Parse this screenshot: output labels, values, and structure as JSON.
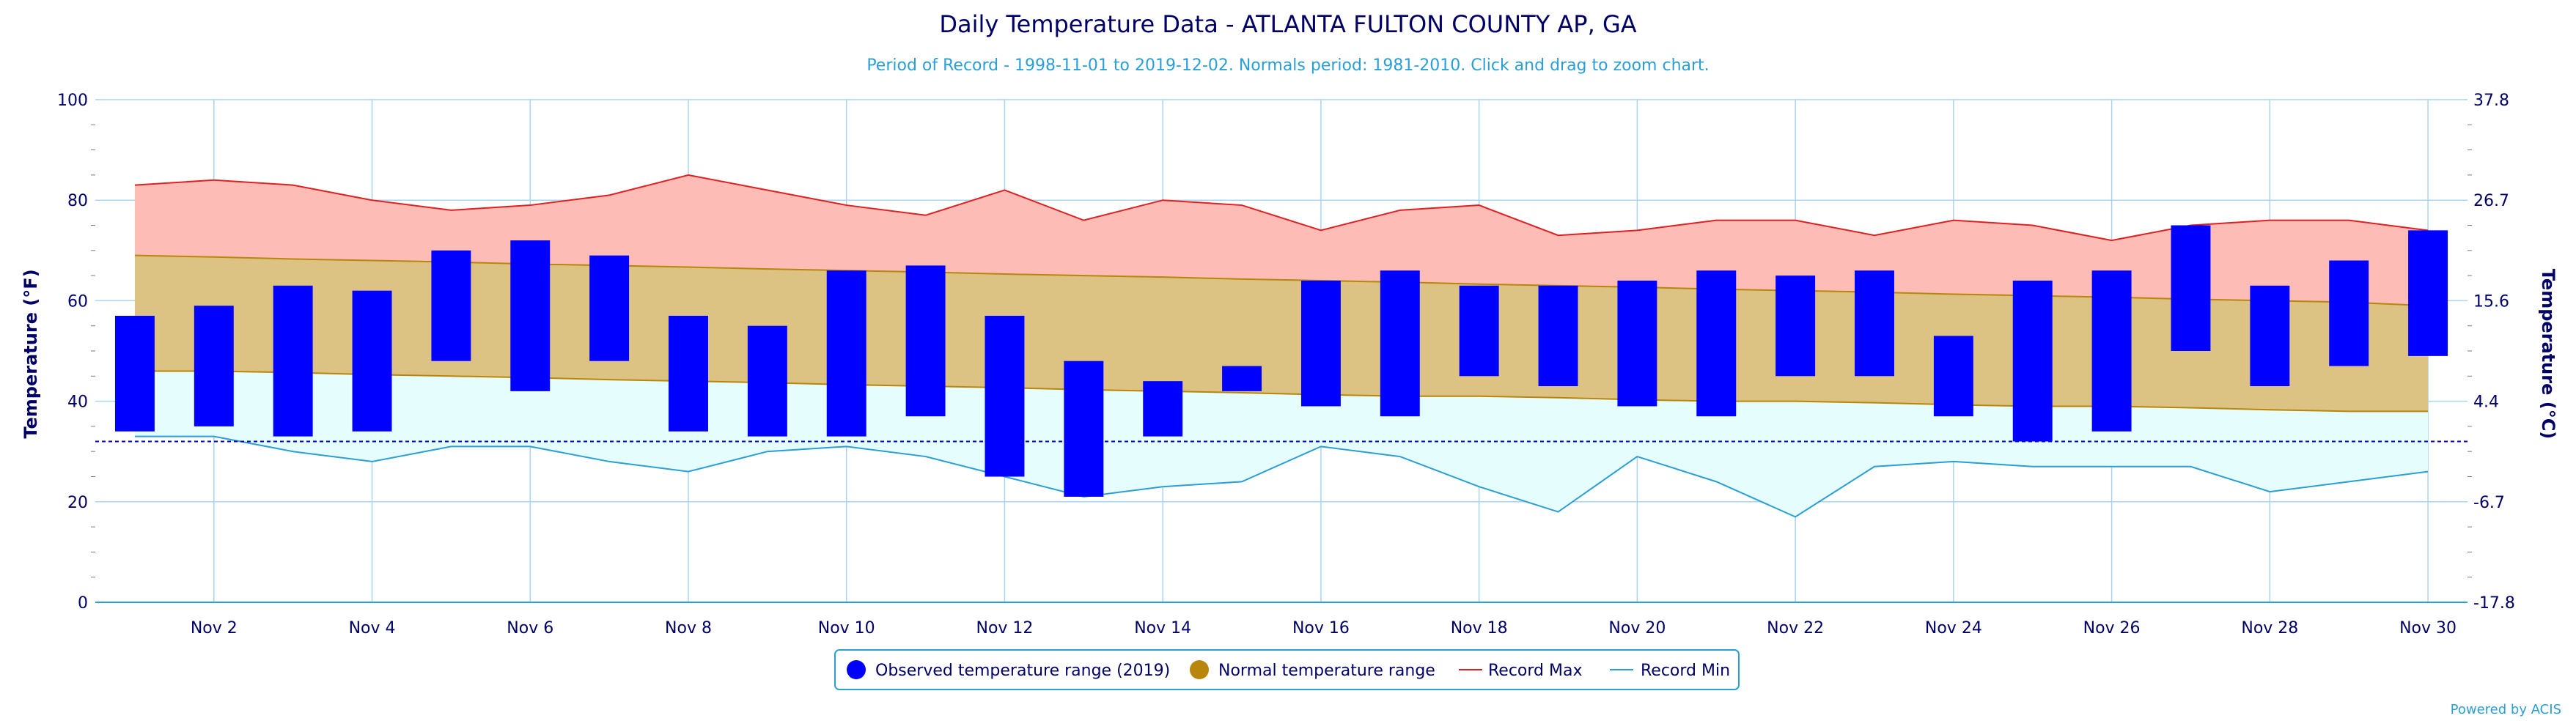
{
  "chart_data": {
    "type": "bar",
    "title": "Daily Temperature Data - ATLANTA FULTON COUNTY AP, GA",
    "subtitle": "Period of Record - 1998-11-01 to 2019-12-02. Normals period: 1981-2010. Click and drag to zoom chart.",
    "ylabel": "Temperature (°F)",
    "ylabel_right": "Temperature (°C)",
    "ylim": [
      0,
      100
    ],
    "y_ticks": [
      "0",
      "20",
      "40",
      "60",
      "80",
      "100"
    ],
    "y_ticks_right": [
      "-17.8",
      "-6.7",
      "4.4",
      "15.6",
      "26.7",
      "37.8"
    ],
    "x_ticks": [
      "Nov 2",
      "Nov 4",
      "Nov 6",
      "Nov 8",
      "Nov 10",
      "Nov 12",
      "Nov 14",
      "Nov 16",
      "Nov 18",
      "Nov 20",
      "Nov 22",
      "Nov 24",
      "Nov 26",
      "Nov 28",
      "Nov 30"
    ],
    "x_tick_days": [
      2,
      4,
      6,
      8,
      10,
      12,
      14,
      16,
      18,
      20,
      22,
      24,
      26,
      28,
      30
    ],
    "days": [
      1,
      2,
      3,
      4,
      5,
      6,
      7,
      8,
      9,
      10,
      11,
      12,
      13,
      14,
      15,
      16,
      17,
      18,
      19,
      20,
      21,
      22,
      23,
      24,
      25,
      26,
      27,
      28,
      29,
      30
    ],
    "freezing_line": 32,
    "grid": true,
    "legend_position": "bottom-center",
    "series": [
      {
        "name": "Observed temperature range (2019)",
        "type": "columnrange",
        "color": "#0000ff",
        "low": [
          34,
          35,
          33,
          34,
          48,
          42,
          48,
          34,
          33,
          33,
          37,
          25,
          21,
          33,
          42,
          39,
          37,
          45,
          43,
          39,
          37,
          45,
          45,
          37,
          32,
          34,
          50,
          43,
          47,
          49
        ],
        "high": [
          57,
          59,
          63,
          62,
          70,
          72,
          69,
          57,
          55,
          66,
          67,
          57,
          48,
          44,
          47,
          64,
          66,
          63,
          63,
          64,
          66,
          65,
          66,
          53,
          64,
          66,
          75,
          63,
          68,
          74
        ]
      },
      {
        "name": "Normal temperature range",
        "type": "arearange",
        "color": "#b8860b",
        "low": [
          46,
          46,
          45.7,
          45.3,
          45,
          44.7,
          44.3,
          44,
          43.7,
          43.3,
          43,
          42.7,
          42.3,
          42,
          41.7,
          41.3,
          41,
          41,
          40.7,
          40.3,
          40,
          40,
          39.7,
          39.3,
          39,
          39,
          38.7,
          38.3,
          38,
          38
        ],
        "high": [
          69,
          68.7,
          68.3,
          68,
          67.7,
          67.3,
          67,
          66.7,
          66.3,
          66,
          65.7,
          65.3,
          65,
          64.7,
          64.3,
          64,
          63.7,
          63.3,
          63,
          62.7,
          62.3,
          62,
          61.7,
          61.3,
          61,
          60.7,
          60.3,
          60,
          59.7,
          59
        ]
      },
      {
        "name": "Record Max",
        "type": "line",
        "color": "#e02020",
        "values": [
          83,
          84,
          83,
          80,
          78,
          79,
          81,
          85,
          82,
          79,
          77,
          82,
          76,
          80,
          79,
          74,
          78,
          79,
          73,
          74,
          76,
          76,
          73,
          76,
          75,
          72,
          75,
          76,
          76,
          74
        ]
      },
      {
        "name": "Record Min",
        "type": "line",
        "color": "#2a9fd6",
        "values": [
          33,
          33,
          30,
          28,
          31,
          31,
          28,
          26,
          30,
          31,
          29,
          25,
          21,
          23,
          24,
          31,
          29,
          23,
          18,
          29,
          24,
          17,
          27,
          28,
          27,
          27,
          27,
          22,
          24,
          26
        ]
      }
    ],
    "credit": "Powered by ACIS"
  }
}
